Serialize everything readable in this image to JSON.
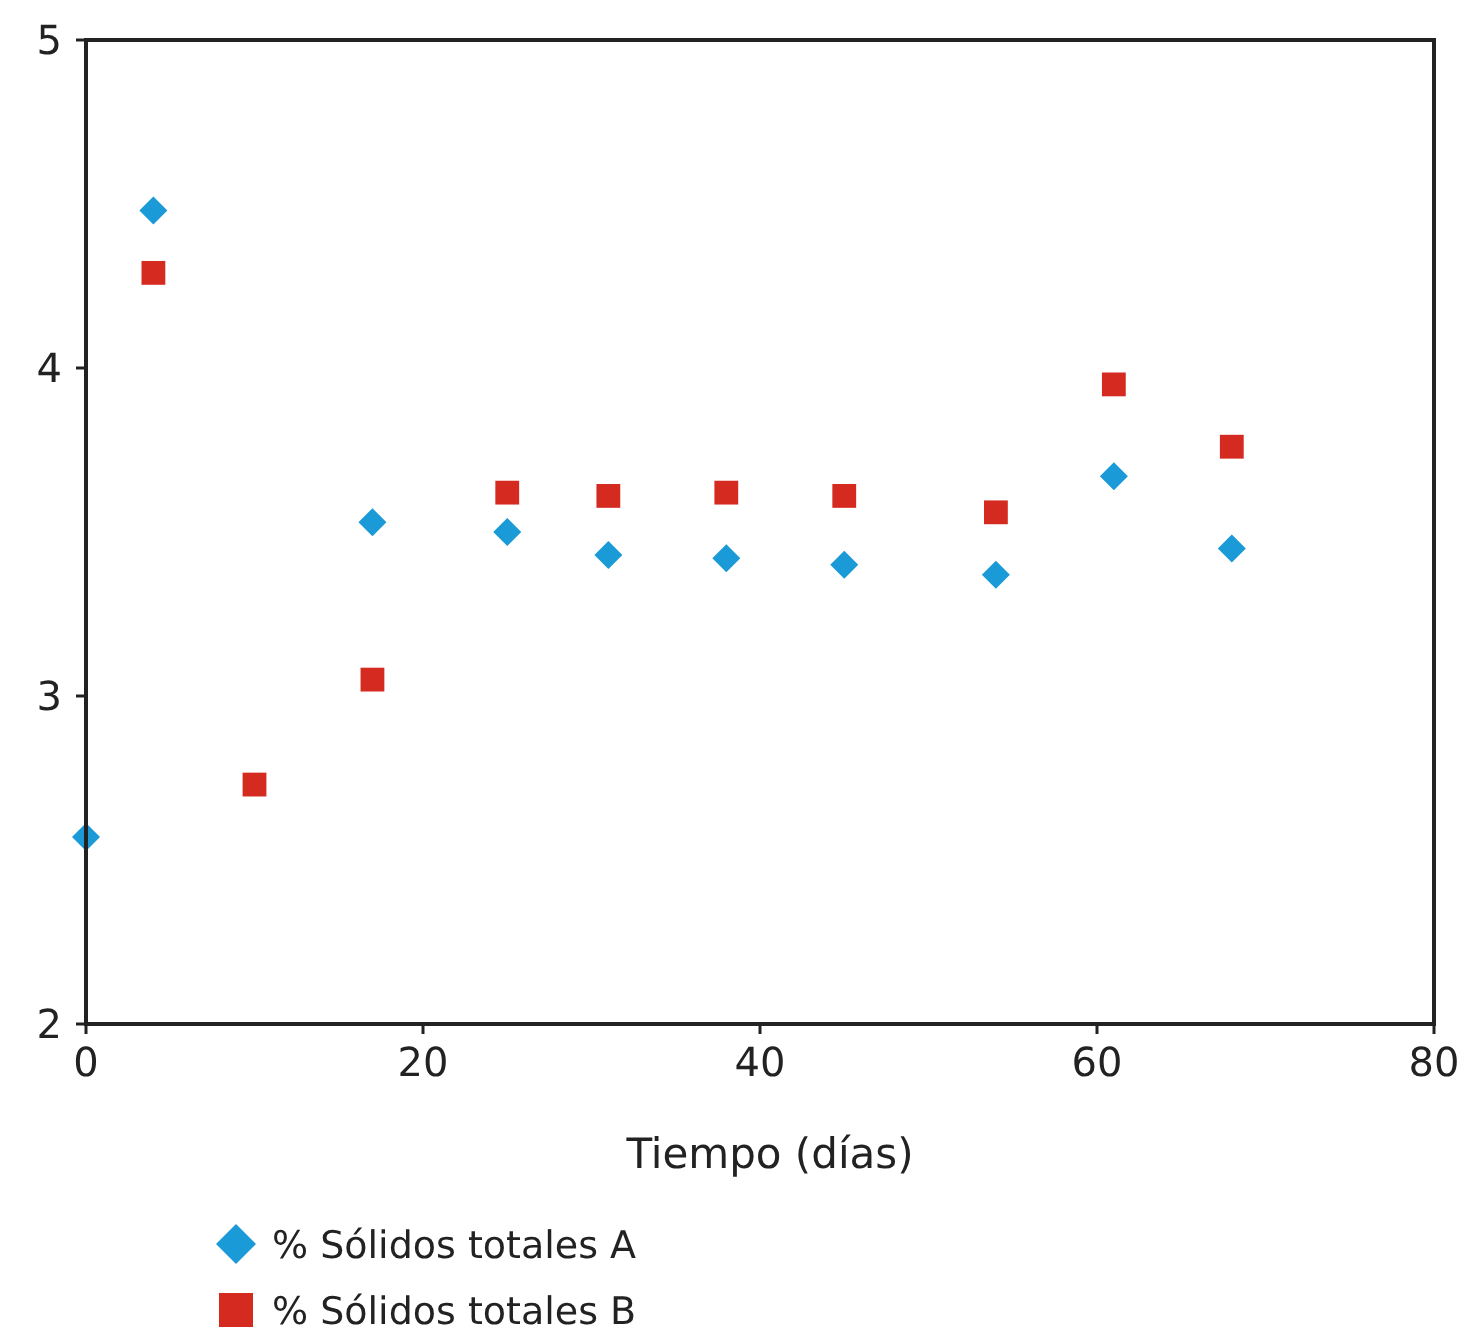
{
  "chart_data": {
    "type": "scatter",
    "xlabel": "Tiempo (días)",
    "xlim": [
      0,
      80
    ],
    "xticks": [
      0,
      20,
      40,
      60,
      80
    ],
    "ylim": [
      2,
      5
    ],
    "yticks": [
      2,
      3,
      4,
      5
    ],
    "grid": false,
    "legend": "bottom",
    "series": [
      {
        "name": "% Sólidos totales A",
        "color": "#1a9ad6",
        "marker": "diamond",
        "x": [
          0,
          4,
          17,
          25,
          31,
          38,
          45,
          54,
          61,
          68
        ],
        "values": [
          2.57,
          4.48,
          3.53,
          3.5,
          3.43,
          3.42,
          3.4,
          3.37,
          3.67,
          3.45
        ]
      },
      {
        "name": "% Sólidos totales B",
        "color": "#d42a20",
        "marker": "square",
        "x": [
          4,
          10,
          17,
          25,
          31,
          38,
          45,
          54,
          61,
          68
        ],
        "values": [
          4.29,
          2.73,
          3.05,
          3.62,
          3.61,
          3.62,
          3.61,
          3.56,
          3.95,
          3.76
        ]
      }
    ]
  }
}
